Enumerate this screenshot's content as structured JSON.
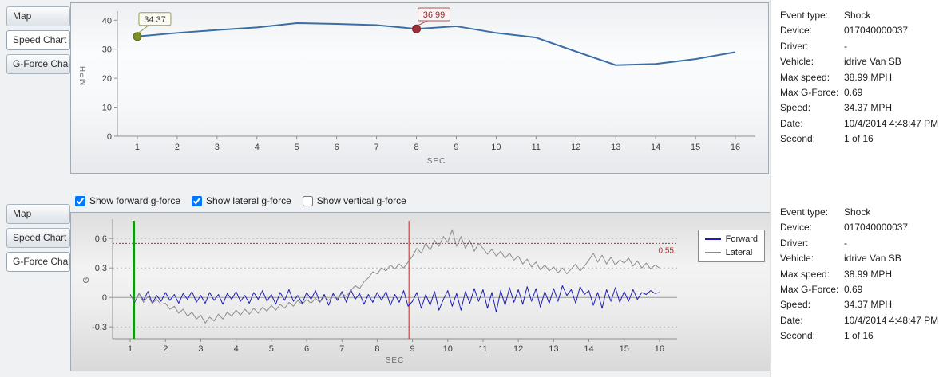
{
  "sections": {
    "top": {
      "tabs": [
        {
          "label": "Map",
          "selected": false
        },
        {
          "label": "Speed Chart",
          "selected": true
        },
        {
          "label": "G-Force Chart",
          "selected": false
        }
      ]
    },
    "bottom": {
      "tabs": [
        {
          "label": "Map",
          "selected": false
        },
        {
          "label": "Speed Chart",
          "selected": false
        },
        {
          "label": "G-Force Chart",
          "selected": true
        }
      ],
      "checkboxes": [
        {
          "label": "Show forward g-force",
          "checked": true
        },
        {
          "label": "Show lateral g-force",
          "checked": true
        },
        {
          "label": "Show vertical g-force",
          "checked": false
        }
      ]
    }
  },
  "info": {
    "rows": [
      {
        "label": "Event type:",
        "value": "Shock"
      },
      {
        "label": "Device:",
        "value": "017040000037"
      },
      {
        "label": "Driver:",
        "value": "-"
      },
      {
        "label": "Vehicle:",
        "value": "idrive Van SB"
      },
      {
        "label": "Max speed:",
        "value": "38.99 MPH"
      },
      {
        "label": "Max G-Force:",
        "value": "0.69"
      },
      {
        "label": "Speed:",
        "value": "34.37 MPH"
      },
      {
        "label": "Date:",
        "value": "10/4/2014 4:48:47 PM"
      },
      {
        "label": "Second:",
        "value": "1 of 16"
      }
    ]
  },
  "chart_data": [
    {
      "type": "line",
      "title": "",
      "xlabel": "SEC",
      "ylabel": "MPH",
      "xlim": [
        0.5,
        16.5
      ],
      "ylim": [
        0,
        42
      ],
      "xticks": [
        1,
        2,
        3,
        4,
        5,
        6,
        7,
        8,
        9,
        10,
        11,
        12,
        13,
        14,
        15,
        16
      ],
      "yticks": [
        0,
        10,
        20,
        30,
        40
      ],
      "grid": false,
      "x": [
        1,
        2,
        3,
        4,
        5,
        6,
        7,
        8,
        9,
        10,
        11,
        12,
        13,
        14,
        15,
        16
      ],
      "series": [
        {
          "name": "Speed",
          "color": "#3a6ea5",
          "values": [
            34.37,
            35.6,
            36.6,
            37.5,
            38.99,
            38.7,
            38.3,
            36.99,
            37.9,
            35.6,
            34.0,
            29.2,
            24.5,
            24.9,
            26.6,
            29.0
          ]
        }
      ],
      "markers": [
        {
          "x": 1,
          "y": 34.37,
          "label": "34.37",
          "dot_color": "#7d8c27",
          "dot_stroke": "#5d6a1a",
          "box_fill": "#fbfbf2",
          "box_border": "#97a04e",
          "text_color": "#3c3c3c"
        },
        {
          "x": 8,
          "y": 36.99,
          "label": "36.99",
          "dot_color": "#9e3039",
          "dot_stroke": "#7a2228",
          "box_fill": "#fcf4f4",
          "box_border": "#b05555",
          "text_color": "#8b2a2a"
        }
      ]
    },
    {
      "type": "line",
      "title": "",
      "xlabel": "SEC",
      "ylabel": "G",
      "xlim": [
        0.5,
        16.5
      ],
      "ylim": [
        -0.42,
        0.78
      ],
      "xticks": [
        1,
        2,
        3,
        4,
        5,
        6,
        7,
        8,
        9,
        10,
        11,
        12,
        13,
        14,
        15,
        16
      ],
      "yticks": [
        -0.3,
        0,
        0.3,
        0.6
      ],
      "grid": true,
      "legend_position": "right",
      "series": [
        {
          "name": "Forward",
          "color": "#1e1eb4",
          "x_start": 1,
          "x_step": 0.125,
          "values": [
            0.03,
            -0.05,
            0.04,
            -0.03,
            0.06,
            -0.06,
            0.02,
            -0.04,
            0.05,
            -0.03,
            0.03,
            -0.06,
            0.04,
            -0.02,
            0.06,
            -0.05,
            0.02,
            -0.06,
            0.05,
            -0.03,
            0.03,
            -0.07,
            0.04,
            -0.02,
            0.06,
            -0.04,
            0.02,
            -0.06,
            0.05,
            -0.02,
            0.07,
            -0.04,
            0.03,
            -0.07,
            0.05,
            -0.03,
            0.08,
            -0.04,
            0.02,
            -0.06,
            0.05,
            -0.02,
            0.07,
            -0.05,
            0.03,
            -0.08,
            0.04,
            -0.03,
            0.06,
            -0.05,
            0.08,
            -0.02,
            0.04,
            -0.07,
            0.03,
            -0.05,
            0.05,
            -0.03,
            0.06,
            -0.08,
            0.03,
            -0.05,
            0.07,
            -0.09,
            -0.04,
            0.05,
            -0.11,
            0.03,
            -0.08,
            0.06,
            -0.13,
            -0.02,
            0.07,
            -0.09,
            0.04,
            -0.13,
            0.06,
            -0.06,
            0.09,
            -0.04,
            0.08,
            -0.11,
            0.05,
            -0.15,
            0.07,
            -0.08,
            0.1,
            -0.05,
            0.08,
            -0.07,
            0.11,
            -0.04,
            0.09,
            -0.1,
            0.06,
            -0.06,
            0.09,
            -0.04,
            0.12,
            0.02,
            0.08,
            -0.06,
            0.11,
            0.03,
            0.07,
            -0.08,
            0.05,
            -0.11,
            0.08,
            -0.04,
            0.1,
            -0.05,
            0.06,
            -0.04,
            0.08,
            -0.02,
            0.05,
            0.03,
            0.07,
            0.04,
            0.05
          ]
        },
        {
          "name": "Lateral",
          "color": "#8c8c8c",
          "x_start": 1,
          "x_step": 0.125,
          "values": [
            0.02,
            -0.04,
            0.04,
            -0.05,
            0.01,
            -0.06,
            -0.02,
            -0.07,
            -0.06,
            -0.12,
            -0.09,
            -0.16,
            -0.12,
            -0.19,
            -0.15,
            -0.22,
            -0.18,
            -0.26,
            -0.2,
            -0.24,
            -0.17,
            -0.22,
            -0.15,
            -0.19,
            -0.13,
            -0.18,
            -0.12,
            -0.17,
            -0.11,
            -0.16,
            -0.1,
            -0.14,
            -0.08,
            -0.13,
            -0.07,
            -0.11,
            -0.05,
            -0.09,
            -0.03,
            -0.07,
            -0.02,
            -0.06,
            -0.01,
            -0.05,
            0.01,
            -0.03,
            0.02,
            -0.01,
            0.04,
            0.01,
            0.07,
            0.12,
            0.09,
            0.16,
            0.2,
            0.26,
            0.24,
            0.3,
            0.27,
            0.33,
            0.29,
            0.34,
            0.3,
            0.36,
            0.42,
            0.5,
            0.45,
            0.55,
            0.48,
            0.58,
            0.52,
            0.62,
            0.56,
            0.69,
            0.52,
            0.62,
            0.5,
            0.58,
            0.47,
            0.55,
            0.5,
            0.44,
            0.49,
            0.42,
            0.47,
            0.4,
            0.45,
            0.38,
            0.42,
            0.34,
            0.39,
            0.31,
            0.36,
            0.28,
            0.33,
            0.27,
            0.31,
            0.25,
            0.3,
            0.24,
            0.29,
            0.34,
            0.27,
            0.32,
            0.38,
            0.45,
            0.36,
            0.43,
            0.34,
            0.41,
            0.33,
            0.38,
            0.35,
            0.4,
            0.32,
            0.37,
            0.3,
            0.35,
            0.29,
            0.33,
            0.3
          ]
        }
      ],
      "vlines": [
        {
          "x": 1.1,
          "color": "#149614",
          "width": 3,
          "name": "selected-second-line"
        },
        {
          "x": 8.9,
          "color": "#cc2222",
          "width": 1,
          "name": "event-trigger-line"
        }
      ],
      "hline": {
        "y": 0.55,
        "label": "0.55",
        "color": "#cc2222"
      }
    }
  ]
}
